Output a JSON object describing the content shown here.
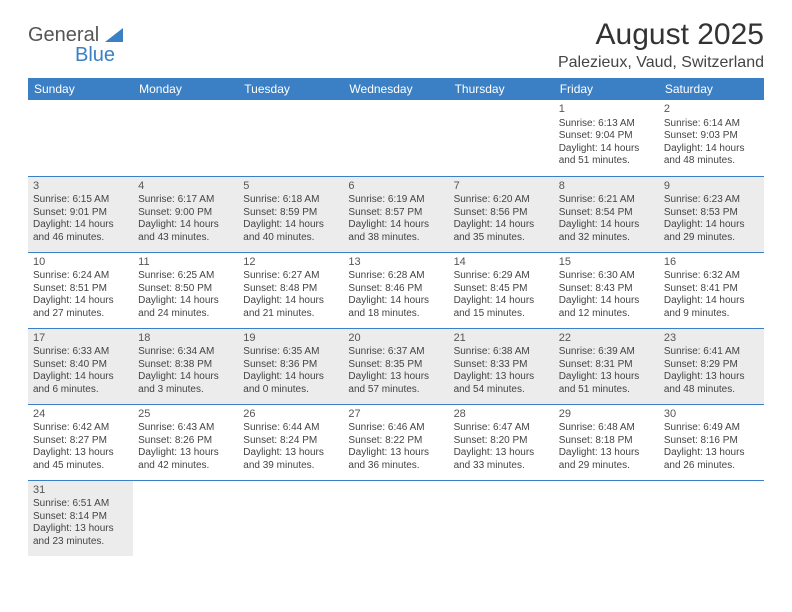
{
  "logo": {
    "text1": "General",
    "text2": "Blue"
  },
  "title": "August 2025",
  "location": "Palezieux, Vaud, Switzerland",
  "header_color": "#3b7fc4",
  "shade_color": "#ececec",
  "day_headers": [
    "Sunday",
    "Monday",
    "Tuesday",
    "Wednesday",
    "Thursday",
    "Friday",
    "Saturday"
  ],
  "weeks": [
    [
      null,
      null,
      null,
      null,
      null,
      {
        "n": "1",
        "sr": "Sunrise: 6:13 AM",
        "ss": "Sunset: 9:04 PM",
        "d1": "Daylight: 14 hours",
        "d2": "and 51 minutes."
      },
      {
        "n": "2",
        "sr": "Sunrise: 6:14 AM",
        "ss": "Sunset: 9:03 PM",
        "d1": "Daylight: 14 hours",
        "d2": "and 48 minutes."
      }
    ],
    [
      {
        "n": "3",
        "sr": "Sunrise: 6:15 AM",
        "ss": "Sunset: 9:01 PM",
        "d1": "Daylight: 14 hours",
        "d2": "and 46 minutes."
      },
      {
        "n": "4",
        "sr": "Sunrise: 6:17 AM",
        "ss": "Sunset: 9:00 PM",
        "d1": "Daylight: 14 hours",
        "d2": "and 43 minutes."
      },
      {
        "n": "5",
        "sr": "Sunrise: 6:18 AM",
        "ss": "Sunset: 8:59 PM",
        "d1": "Daylight: 14 hours",
        "d2": "and 40 minutes."
      },
      {
        "n": "6",
        "sr": "Sunrise: 6:19 AM",
        "ss": "Sunset: 8:57 PM",
        "d1": "Daylight: 14 hours",
        "d2": "and 38 minutes."
      },
      {
        "n": "7",
        "sr": "Sunrise: 6:20 AM",
        "ss": "Sunset: 8:56 PM",
        "d1": "Daylight: 14 hours",
        "d2": "and 35 minutes."
      },
      {
        "n": "8",
        "sr": "Sunrise: 6:21 AM",
        "ss": "Sunset: 8:54 PM",
        "d1": "Daylight: 14 hours",
        "d2": "and 32 minutes."
      },
      {
        "n": "9",
        "sr": "Sunrise: 6:23 AM",
        "ss": "Sunset: 8:53 PM",
        "d1": "Daylight: 14 hours",
        "d2": "and 29 minutes."
      }
    ],
    [
      {
        "n": "10",
        "sr": "Sunrise: 6:24 AM",
        "ss": "Sunset: 8:51 PM",
        "d1": "Daylight: 14 hours",
        "d2": "and 27 minutes."
      },
      {
        "n": "11",
        "sr": "Sunrise: 6:25 AM",
        "ss": "Sunset: 8:50 PM",
        "d1": "Daylight: 14 hours",
        "d2": "and 24 minutes."
      },
      {
        "n": "12",
        "sr": "Sunrise: 6:27 AM",
        "ss": "Sunset: 8:48 PM",
        "d1": "Daylight: 14 hours",
        "d2": "and 21 minutes."
      },
      {
        "n": "13",
        "sr": "Sunrise: 6:28 AM",
        "ss": "Sunset: 8:46 PM",
        "d1": "Daylight: 14 hours",
        "d2": "and 18 minutes."
      },
      {
        "n": "14",
        "sr": "Sunrise: 6:29 AM",
        "ss": "Sunset: 8:45 PM",
        "d1": "Daylight: 14 hours",
        "d2": "and 15 minutes."
      },
      {
        "n": "15",
        "sr": "Sunrise: 6:30 AM",
        "ss": "Sunset: 8:43 PM",
        "d1": "Daylight: 14 hours",
        "d2": "and 12 minutes."
      },
      {
        "n": "16",
        "sr": "Sunrise: 6:32 AM",
        "ss": "Sunset: 8:41 PM",
        "d1": "Daylight: 14 hours",
        "d2": "and 9 minutes."
      }
    ],
    [
      {
        "n": "17",
        "sr": "Sunrise: 6:33 AM",
        "ss": "Sunset: 8:40 PM",
        "d1": "Daylight: 14 hours",
        "d2": "and 6 minutes."
      },
      {
        "n": "18",
        "sr": "Sunrise: 6:34 AM",
        "ss": "Sunset: 8:38 PM",
        "d1": "Daylight: 14 hours",
        "d2": "and 3 minutes."
      },
      {
        "n": "19",
        "sr": "Sunrise: 6:35 AM",
        "ss": "Sunset: 8:36 PM",
        "d1": "Daylight: 14 hours",
        "d2": "and 0 minutes."
      },
      {
        "n": "20",
        "sr": "Sunrise: 6:37 AM",
        "ss": "Sunset: 8:35 PM",
        "d1": "Daylight: 13 hours",
        "d2": "and 57 minutes."
      },
      {
        "n": "21",
        "sr": "Sunrise: 6:38 AM",
        "ss": "Sunset: 8:33 PM",
        "d1": "Daylight: 13 hours",
        "d2": "and 54 minutes."
      },
      {
        "n": "22",
        "sr": "Sunrise: 6:39 AM",
        "ss": "Sunset: 8:31 PM",
        "d1": "Daylight: 13 hours",
        "d2": "and 51 minutes."
      },
      {
        "n": "23",
        "sr": "Sunrise: 6:41 AM",
        "ss": "Sunset: 8:29 PM",
        "d1": "Daylight: 13 hours",
        "d2": "and 48 minutes."
      }
    ],
    [
      {
        "n": "24",
        "sr": "Sunrise: 6:42 AM",
        "ss": "Sunset: 8:27 PM",
        "d1": "Daylight: 13 hours",
        "d2": "and 45 minutes."
      },
      {
        "n": "25",
        "sr": "Sunrise: 6:43 AM",
        "ss": "Sunset: 8:26 PM",
        "d1": "Daylight: 13 hours",
        "d2": "and 42 minutes."
      },
      {
        "n": "26",
        "sr": "Sunrise: 6:44 AM",
        "ss": "Sunset: 8:24 PM",
        "d1": "Daylight: 13 hours",
        "d2": "and 39 minutes."
      },
      {
        "n": "27",
        "sr": "Sunrise: 6:46 AM",
        "ss": "Sunset: 8:22 PM",
        "d1": "Daylight: 13 hours",
        "d2": "and 36 minutes."
      },
      {
        "n": "28",
        "sr": "Sunrise: 6:47 AM",
        "ss": "Sunset: 8:20 PM",
        "d1": "Daylight: 13 hours",
        "d2": "and 33 minutes."
      },
      {
        "n": "29",
        "sr": "Sunrise: 6:48 AM",
        "ss": "Sunset: 8:18 PM",
        "d1": "Daylight: 13 hours",
        "d2": "and 29 minutes."
      },
      {
        "n": "30",
        "sr": "Sunrise: 6:49 AM",
        "ss": "Sunset: 8:16 PM",
        "d1": "Daylight: 13 hours",
        "d2": "and 26 minutes."
      }
    ],
    [
      {
        "n": "31",
        "sr": "Sunrise: 6:51 AM",
        "ss": "Sunset: 8:14 PM",
        "d1": "Daylight: 13 hours",
        "d2": "and 23 minutes."
      },
      null,
      null,
      null,
      null,
      null,
      null
    ]
  ]
}
